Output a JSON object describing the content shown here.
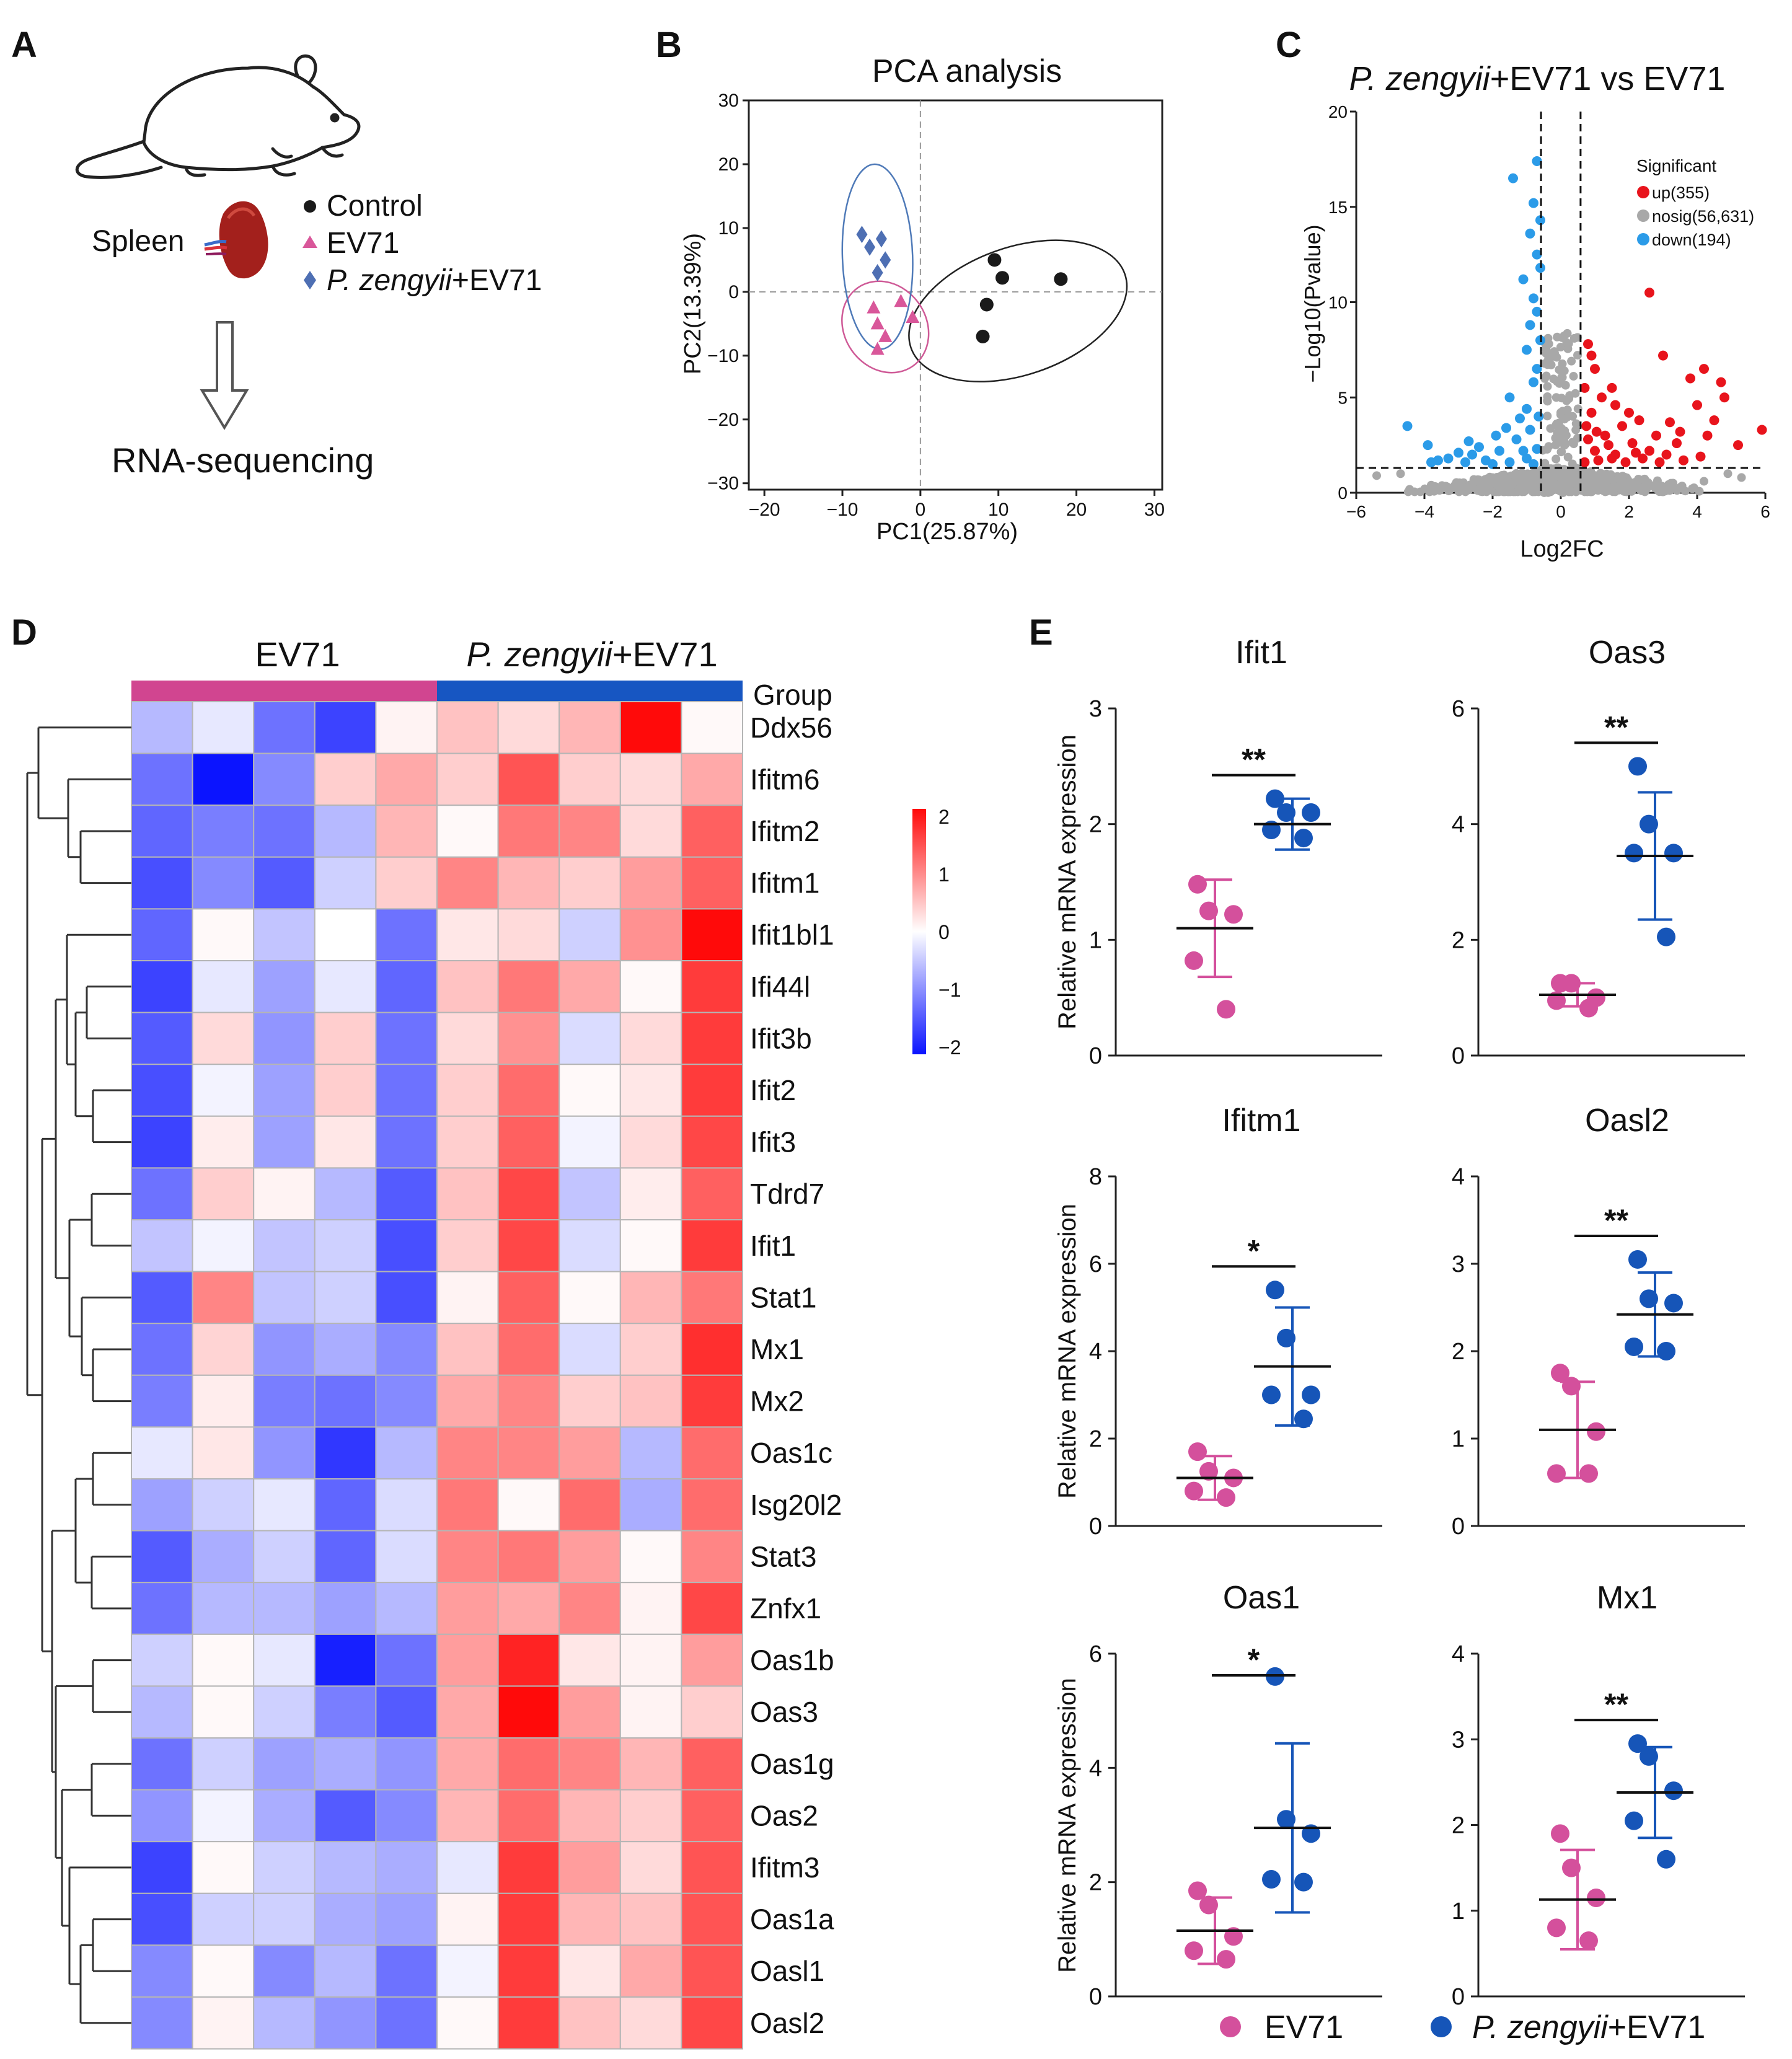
{
  "panel_labels": {
    "A": "A",
    "B": "B",
    "C": "C",
    "D": "D",
    "E": "E"
  },
  "colors": {
    "control": "#1a1a1a",
    "ev71": "#d9579a",
    "pz": "#4e6fb3",
    "up": "#e8141c",
    "nosig": "#a8a8a8",
    "down": "#2b9be8",
    "heat_low": "#0b14ff",
    "heat_mid": "#ffffff",
    "heat_high": "#ff0a0a",
    "group_ev71": "#d14590",
    "group_pz": "#1756c2",
    "dot_ev71": "#d4509c",
    "dot_pz": "#1655b8"
  },
  "panelA": {
    "organ_label": "Spleen",
    "legend": [
      {
        "symbol": "circle",
        "label": "Control"
      },
      {
        "symbol": "triangle",
        "label": "EV71"
      },
      {
        "symbol": "diamond",
        "label_italic": "P. zengyii",
        "label_rest": "+EV71"
      }
    ],
    "method": "RNA-sequencing"
  },
  "chart_data": [
    {
      "id": "pca",
      "type": "scatter",
      "title": "PCA analysis",
      "xlabel": "PC1(25.87%)",
      "ylabel": "PC2(13.39%)",
      "xlim": [
        -22,
        31
      ],
      "ylim": [
        -31,
        30
      ],
      "xticks": [
        -20,
        -10,
        0,
        10,
        20,
        30
      ],
      "yticks": [
        -30,
        -20,
        -10,
        0,
        10,
        20,
        30
      ],
      "series": [
        {
          "name": "Control",
          "marker": "circle",
          "x": [
            9.5,
            10.5,
            8.5,
            8,
            18
          ],
          "y": [
            5,
            2.2,
            -2,
            -7,
            2
          ]
        },
        {
          "name": "EV71",
          "marker": "triangle",
          "x": [
            -6,
            -5.5,
            -4.5,
            -2.5,
            -1,
            -5.5
          ],
          "y": [
            -2.5,
            -5,
            -7,
            -1.5,
            -4,
            -9
          ]
        },
        {
          "name": "P. zengyii+EV71",
          "marker": "diamond",
          "x": [
            -7.5,
            -5,
            -6.5,
            -4.5,
            -5.5
          ],
          "y": [
            9,
            8.3,
            7,
            5,
            3
          ]
        }
      ],
      "ellipses": [
        {
          "group": "Control",
          "cx": 12.5,
          "cy": -3,
          "rx": 29,
          "ry": 20,
          "angle": 19
        },
        {
          "group": "EV71",
          "cx": -4.5,
          "cy": -5.5,
          "rx": 10.5,
          "ry": 15,
          "angle": 35
        },
        {
          "group": "P. zengyii+EV71",
          "cx": -5.5,
          "cy": 5.5,
          "rx": 9,
          "ry": 29,
          "angle": 2
        }
      ]
    },
    {
      "id": "volcano",
      "type": "scatter",
      "title_italic": "P. zengyii",
      "title_rest": "+EV71 vs EV71",
      "xlabel": "Log2FC",
      "ylabel": "−Log10(Pvalue)",
      "xlim": [
        -6,
        6
      ],
      "ylim": [
        0,
        20
      ],
      "xticks": [
        -6,
        -4,
        -2,
        0,
        2,
        4,
        6
      ],
      "yticks": [
        0,
        5,
        10,
        15,
        20
      ],
      "fc_threshold": 0.58,
      "p_threshold": 1.3,
      "legend_title": "Significant",
      "legend": [
        {
          "key": "up",
          "label": "up(355)"
        },
        {
          "key": "nosig",
          "label": "nosig(56,631)"
        },
        {
          "key": "down",
          "label": "down(194)"
        }
      ],
      "up_points": [
        [
          0.8,
          7.8
        ],
        [
          0.9,
          7.2
        ],
        [
          1.0,
          6.5
        ],
        [
          0.7,
          5.5
        ],
        [
          1.2,
          5
        ],
        [
          1.5,
          5.5
        ],
        [
          1.6,
          4.6
        ],
        [
          2.0,
          4.2
        ],
        [
          2.3,
          3.8
        ],
        [
          2.6,
          10.5
        ],
        [
          3.0,
          7.2
        ],
        [
          3.2,
          3.7
        ],
        [
          3.5,
          3.2
        ],
        [
          3.8,
          6.0
        ],
        [
          4.0,
          4.6
        ],
        [
          4.2,
          6.5
        ],
        [
          4.3,
          3.0
        ],
        [
          4.7,
          5.8
        ],
        [
          4.8,
          5.0
        ],
        [
          5.2,
          2.5
        ],
        [
          5.9,
          3.3
        ],
        [
          4.5,
          3.8
        ],
        [
          1.8,
          3.5
        ],
        [
          2.8,
          3.0
        ],
        [
          3.4,
          2.6
        ],
        [
          0.9,
          4.2
        ],
        [
          1.3,
          3.0
        ],
        [
          2.1,
          2.6
        ],
        [
          2.6,
          2.2
        ],
        [
          3.1,
          2.0
        ],
        [
          1.0,
          2.2
        ],
        [
          1.6,
          2.0
        ],
        [
          0.8,
          2.8
        ],
        [
          1.1,
          1.7
        ],
        [
          1.9,
          1.6
        ],
        [
          2.4,
          1.8
        ],
        [
          3.6,
          1.7
        ],
        [
          4.1,
          1.9
        ],
        [
          0.7,
          1.6
        ],
        [
          1.4,
          2.5
        ],
        [
          1.5,
          1.8
        ],
        [
          2.2,
          2.1
        ],
        [
          2.9,
          1.6
        ],
        [
          0.75,
          3.5
        ],
        [
          1.05,
          3.2
        ]
      ],
      "down_points": [
        [
          -0.7,
          17.4
        ],
        [
          -0.8,
          15.2
        ],
        [
          -1.4,
          16.5
        ],
        [
          -0.6,
          14.3
        ],
        [
          -0.9,
          13.6
        ],
        [
          -0.7,
          12.5
        ],
        [
          -0.6,
          11.8
        ],
        [
          -1.1,
          11.2
        ],
        [
          -0.8,
          10.2
        ],
        [
          -0.7,
          9.5
        ],
        [
          -0.9,
          8.8
        ],
        [
          -0.6,
          8.0
        ],
        [
          -1.0,
          7.5
        ],
        [
          -0.7,
          6.5
        ],
        [
          -0.8,
          5.8
        ],
        [
          -1.5,
          5.0
        ],
        [
          -1.0,
          4.4
        ],
        [
          -1.2,
          3.9
        ],
        [
          -1.6,
          3.4
        ],
        [
          -1.9,
          3.0
        ],
        [
          -2.4,
          2.4
        ],
        [
          -2.6,
          2.0
        ],
        [
          -3.0,
          2.1
        ],
        [
          -3.3,
          1.8
        ],
        [
          -3.6,
          1.7
        ],
        [
          -4.5,
          3.5
        ],
        [
          -3.9,
          2.5
        ],
        [
          -2.2,
          1.7
        ],
        [
          -1.8,
          2.2
        ],
        [
          -1.3,
          2.8
        ],
        [
          -0.9,
          3.3
        ],
        [
          -0.7,
          2.3
        ],
        [
          -1.0,
          1.8
        ],
        [
          -1.5,
          1.6
        ],
        [
          -2.0,
          1.5
        ],
        [
          -2.8,
          1.6
        ],
        [
          -3.8,
          1.6
        ],
        [
          -0.65,
          4.0
        ],
        [
          -1.1,
          2.2
        ],
        [
          -0.8,
          1.5
        ],
        [
          -2.7,
          2.7
        ]
      ]
    },
    {
      "id": "heatmap",
      "type": "heatmap",
      "groups": [
        {
          "label": "EV71",
          "n": 5,
          "color_key": "group_ev71"
        },
        {
          "label_italic": "P. zengyii",
          "label_rest": "+EV71",
          "n": 5,
          "color_key": "group_pz"
        }
      ],
      "group_label": "Group",
      "colorbar_ticks": [
        "2",
        "1",
        "0",
        "−1",
        "−2"
      ],
      "genes": [
        "Ddx56",
        "Ifitm6",
        "Ifitm2",
        "Ifitm1",
        "Ifit1bl1",
        "Ifi44l",
        "Ifit3b",
        "Ifit2",
        "Ifit3",
        "Tdrd7",
        "Ifit1",
        "Stat1",
        "Mx1",
        "Mx2",
        "Oas1c",
        "Isg20l2",
        "Stat3",
        "Znfx1",
        "Oas1b",
        "Oas3",
        "Oas1g",
        "Oas2",
        "Ifitm3",
        "Oas1a",
        "Oasl1",
        "Oasl2"
      ],
      "values": [
        [
          -0.6,
          -0.2,
          -1.2,
          -1.6,
          0.1,
          0.5,
          0.3,
          0.6,
          2.0,
          0.05
        ],
        [
          -1.2,
          -2.0,
          -1.0,
          0.4,
          0.7,
          0.4,
          1.4,
          0.4,
          0.3,
          0.7
        ],
        [
          -1.3,
          -1.1,
          -1.2,
          -0.6,
          0.6,
          0.05,
          1.1,
          1.0,
          0.3,
          1.3
        ],
        [
          -1.5,
          -1.0,
          -1.4,
          -0.4,
          0.4,
          1.0,
          0.6,
          0.4,
          0.8,
          1.3
        ],
        [
          -1.3,
          0.05,
          -0.5,
          0.0,
          -1.2,
          0.2,
          0.3,
          -0.4,
          0.9,
          2.1
        ],
        [
          -1.6,
          -0.2,
          -0.8,
          -0.2,
          -1.3,
          0.5,
          1.1,
          0.7,
          0.05,
          1.6
        ],
        [
          -1.4,
          0.3,
          -0.9,
          0.4,
          -1.2,
          0.3,
          0.9,
          -0.3,
          0.3,
          1.6
        ],
        [
          -1.5,
          -0.1,
          -0.8,
          0.4,
          -1.2,
          0.4,
          1.2,
          0.05,
          0.2,
          1.6
        ],
        [
          -1.6,
          0.15,
          -0.8,
          0.2,
          -1.2,
          0.4,
          1.3,
          -0.1,
          0.3,
          1.5
        ],
        [
          -1.2,
          0.4,
          0.1,
          -0.6,
          -1.4,
          0.5,
          1.5,
          -0.5,
          0.15,
          1.3
        ],
        [
          -0.5,
          -0.1,
          -0.5,
          -0.4,
          -1.5,
          0.4,
          1.5,
          -0.3,
          0.05,
          1.6
        ],
        [
          -1.4,
          1.0,
          -0.5,
          -0.4,
          -1.5,
          0.1,
          1.3,
          0.05,
          0.6,
          1.1
        ],
        [
          -1.2,
          0.35,
          -0.9,
          -0.7,
          -1.0,
          0.5,
          1.2,
          -0.3,
          0.4,
          1.7
        ],
        [
          -1.1,
          0.15,
          -1.1,
          -1.2,
          -1.0,
          0.7,
          1.0,
          0.4,
          0.5,
          1.6
        ],
        [
          -0.2,
          0.2,
          -0.9,
          -1.7,
          -0.6,
          1.0,
          1.0,
          0.8,
          -0.6,
          1.2
        ],
        [
          -0.8,
          -0.4,
          -0.2,
          -1.3,
          -0.3,
          1.1,
          0.05,
          1.2,
          -0.7,
          1.2
        ],
        [
          -1.4,
          -0.7,
          -0.4,
          -1.3,
          -0.3,
          1.0,
          1.1,
          0.8,
          0.05,
          1.0
        ],
        [
          -1.2,
          -0.6,
          -0.6,
          -0.8,
          -0.6,
          0.8,
          0.7,
          1.0,
          0.1,
          1.5
        ],
        [
          -0.4,
          0.05,
          -0.2,
          -1.9,
          -1.2,
          0.8,
          1.8,
          0.2,
          0.1,
          0.8
        ],
        [
          -0.6,
          0.05,
          -0.4,
          -1.1,
          -1.4,
          0.7,
          2.0,
          0.8,
          0.1,
          0.4
        ],
        [
          -1.2,
          -0.4,
          -0.8,
          -0.7,
          -0.9,
          0.7,
          1.2,
          1.0,
          0.6,
          1.3
        ],
        [
          -0.9,
          -0.1,
          -0.7,
          -1.4,
          -1.0,
          0.6,
          1.2,
          0.6,
          0.4,
          1.3
        ],
        [
          -1.6,
          0.05,
          -0.4,
          -0.6,
          -0.7,
          -0.2,
          1.6,
          0.8,
          0.3,
          1.4
        ],
        [
          -1.5,
          -0.4,
          -0.4,
          -0.7,
          -0.8,
          0.1,
          1.6,
          0.6,
          0.5,
          1.4
        ],
        [
          -1.0,
          0.05,
          -1.0,
          -0.6,
          -1.2,
          -0.1,
          1.6,
          0.2,
          0.7,
          1.4
        ],
        [
          -1.0,
          0.1,
          -0.6,
          -0.9,
          -1.2,
          0.05,
          1.6,
          0.5,
          0.3,
          1.5
        ]
      ]
    },
    {
      "id": "dotplots",
      "type": "scatter",
      "ylabel": "Relative mRNA expression",
      "legend": [
        {
          "key": "ev71",
          "label": "EV71"
        },
        {
          "key": "pz",
          "label_italic": "P. zengyii",
          "label_rest": "+EV71"
        }
      ],
      "panels": [
        {
          "title": "Ifit1",
          "ymax": 3,
          "yticks": [
            0,
            1,
            2,
            3
          ],
          "show_ylabel": true,
          "sig": "**",
          "ev71": {
            "values": [
              1.48,
              1.25,
              1.22,
              0.82,
              0.4
            ],
            "mean": 1.1,
            "sd": 0.42
          },
          "pz": {
            "values": [
              2.22,
              2.1,
              2.1,
              1.95,
              1.88
            ],
            "mean": 2.0,
            "sd": 0.22
          }
        },
        {
          "title": "Oas3",
          "ymax": 6,
          "yticks": [
            0,
            2,
            4,
            6
          ],
          "show_ylabel": false,
          "sig": "**",
          "ev71": {
            "values": [
              1.25,
              1.25,
              1.0,
              0.95,
              0.82
            ],
            "mean": 1.05,
            "sd": 0.2
          },
          "pz": {
            "values": [
              5.0,
              4.0,
              3.5,
              3.5,
              2.05
            ],
            "mean": 3.45,
            "sd": 1.1
          }
        },
        {
          "title": "Ifitm1",
          "ymax": 8,
          "yticks": [
            0,
            2,
            4,
            6,
            8
          ],
          "show_ylabel": true,
          "sig": "*",
          "ev71": {
            "values": [
              1.7,
              1.25,
              1.1,
              0.8,
              0.65
            ],
            "mean": 1.1,
            "sd": 0.5
          },
          "pz": {
            "values": [
              5.4,
              4.3,
              3.0,
              3.0,
              2.45
            ],
            "mean": 3.65,
            "sd": 1.35
          }
        },
        {
          "title": "Oasl2",
          "ymax": 4,
          "yticks": [
            0,
            1,
            2,
            3,
            4
          ],
          "show_ylabel": false,
          "sig": "**",
          "ev71": {
            "values": [
              1.75,
              1.6,
              1.08,
              0.6,
              0.6
            ],
            "mean": 1.1,
            "sd": 0.55
          },
          "pz": {
            "values": [
              3.05,
              2.6,
              2.55,
              2.05,
              2.0
            ],
            "mean": 2.42,
            "sd": 0.48
          }
        },
        {
          "title": "Oas1",
          "ymax": 6,
          "yticks": [
            0,
            2,
            4,
            6
          ],
          "show_ylabel": true,
          "sig": "*",
          "ev71": {
            "values": [
              1.85,
              1.6,
              1.05,
              0.8,
              0.65
            ],
            "mean": 1.15,
            "sd": 0.58
          },
          "pz": {
            "values": [
              5.6,
              3.1,
              2.85,
              2.05,
              2.0
            ],
            "mean": 2.95,
            "sd": 1.48
          }
        },
        {
          "title": "Mx1",
          "ymax": 4,
          "yticks": [
            0,
            1,
            2,
            3,
            4
          ],
          "show_ylabel": false,
          "sig": "**",
          "ev71": {
            "values": [
              1.9,
              1.5,
              1.15,
              0.8,
              0.65
            ],
            "mean": 1.13,
            "sd": 0.58
          },
          "pz": {
            "values": [
              2.95,
              2.8,
              2.4,
              2.05,
              1.6
            ],
            "mean": 2.38,
            "sd": 0.53
          }
        }
      ]
    }
  ]
}
